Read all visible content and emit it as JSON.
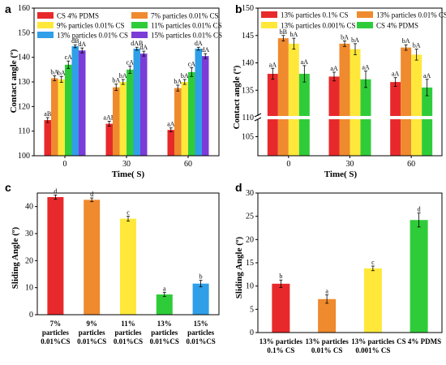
{
  "chart_data": [
    {
      "panel": "a",
      "type": "bar",
      "ylabel": "Contact angle (º)",
      "xlabel": "Time(  S)",
      "ylim": [
        100,
        160
      ],
      "yticks": [
        100,
        110,
        120,
        130,
        140,
        150,
        160
      ],
      "categories": [
        "0",
        "30",
        "60"
      ],
      "series": [
        {
          "name": "CS 4% PDMS",
          "color": "#e8292b",
          "values": [
            114.5,
            113,
            110.5
          ],
          "err": [
            1,
            1,
            0.8
          ],
          "labels": [
            "aB",
            "aAB",
            "aA"
          ]
        },
        {
          "name": "7% particles 0.01% CS",
          "color": "#ef8a2e",
          "values": [
            131.5,
            127.8,
            127.5
          ],
          "err": [
            1,
            1.3,
            1.2
          ],
          "labels": [
            "bA",
            "bA",
            "bA"
          ]
        },
        {
          "name": "9% particles 0.01% CS",
          "color": "#ffe83a",
          "values": [
            131,
            130,
            130
          ],
          "err": [
            1.2,
            1,
            1
          ],
          "labels": [
            "bA",
            "bA",
            "bA"
          ]
        },
        {
          "name": "11% particles 0.01% CS",
          "color": "#2fcc3a",
          "values": [
            137,
            135,
            134
          ],
          "err": [
            1.5,
            1.5,
            1.8
          ],
          "labels": [
            "cA",
            "cA",
            "cA"
          ]
        },
        {
          "name": "13% particles 0.01% CS",
          "color": "#2f9fe8",
          "values": [
            144.5,
            143.5,
            143.5
          ],
          "err": [
            0.6,
            0.6,
            0.6
          ],
          "labels": [
            "dB",
            "dAB",
            "dA"
          ]
        },
        {
          "name": "15% particles 0.01% CS",
          "color": "#7b3cd8",
          "values": [
            142.8,
            141.5,
            140.5
          ],
          "err": [
            1,
            1,
            1
          ],
          "labels": [
            "dA",
            "dA",
            "dA"
          ]
        }
      ]
    },
    {
      "panel": "b",
      "type": "bar",
      "ylabel": "Contact angle (º)",
      "xlabel": "Time(  S)",
      "ylim": [
        100,
        150
      ],
      "broken_axis": [
        110,
        130
      ],
      "yticks": [
        105,
        110,
        135,
        140,
        145,
        150
      ],
      "categories": [
        "0",
        "30",
        "60"
      ],
      "series": [
        {
          "name": "13% particles 0.1% CS",
          "color": "#e8292b",
          "values": [
            138,
            137.5,
            136.5
          ],
          "err": [
            1,
            0.8,
            0.8
          ],
          "labels": [
            "aA",
            "aA",
            "aA"
          ]
        },
        {
          "name": "13% particles 0.01% CS",
          "color": "#ef8a2e",
          "values": [
            144.5,
            143.5,
            142.8
          ],
          "err": [
            0.5,
            0.5,
            0.5
          ],
          "labels": [
            "bB",
            "bA",
            "bA"
          ]
        },
        {
          "name": "13% particles 0.001% CS",
          "color": "#ffe83a",
          "values": [
            143.5,
            142.5,
            141.5
          ],
          "err": [
            1,
            1,
            1
          ],
          "labels": [
            "bA",
            "bA",
            "bA"
          ]
        },
        {
          "name": "CS 4% PDMS",
          "color": "#2fcc3a",
          "values": [
            138,
            137,
            135.5
          ],
          "err": [
            1.5,
            1.5,
            1.5
          ],
          "labels": [
            "aA",
            "aA",
            "aA"
          ]
        }
      ]
    },
    {
      "panel": "c",
      "type": "bar",
      "ylabel": "Sliding Angle (º)",
      "ylim": [
        0,
        45
      ],
      "yticks": [
        0,
        10,
        20,
        30,
        40
      ],
      "categories": [
        "7%\nparticles\n0.01%CS",
        "9%\nparticles\n0.01%CS",
        "11%\nparticles\n0.01%CS",
        "13%\nparticles\n0.01%CS",
        "15%\nparticles\n0.01%CS"
      ],
      "values": [
        43.5,
        42.5,
        35.5,
        7.5,
        11.5
      ],
      "err": [
        0.8,
        0.7,
        0.9,
        0.8,
        1.2
      ],
      "labels": [
        "d",
        "d",
        "c",
        "a",
        "b"
      ],
      "colors": [
        "#e8292b",
        "#ef8a2e",
        "#ffe83a",
        "#2fcc3a",
        "#2f9fe8"
      ]
    },
    {
      "panel": "d",
      "type": "bar",
      "ylabel": "Sliding Angle (º)",
      "ylim": [
        0,
        30
      ],
      "yticks": [
        0,
        5,
        10,
        15,
        20,
        25,
        30
      ],
      "categories": [
        "13% particles\n0.1% CS",
        "13% particles\n0.01% CS",
        "13% particles\n0.001% CS",
        "CS 4% PDMS"
      ],
      "values": [
        10.5,
        7.2,
        13.8,
        24.2
      ],
      "err": [
        0.8,
        0.9,
        0.5,
        1.5
      ],
      "labels": [
        "b",
        "a",
        "c",
        "d"
      ],
      "colors": [
        "#e8292b",
        "#ef8a2e",
        "#ffe83a",
        "#2fcc3a"
      ]
    }
  ]
}
